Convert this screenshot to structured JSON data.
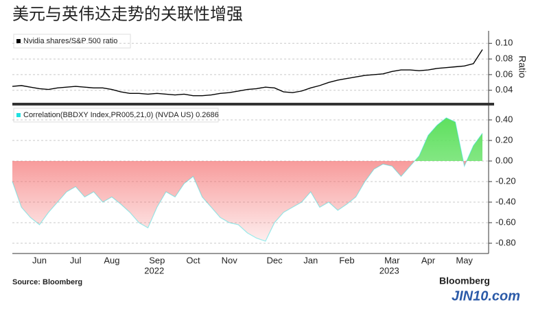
{
  "page_title": "美元与英伟达走势的关联性增强",
  "source": "Source: Bloomberg",
  "brand": "Bloomberg",
  "watermark": "JIN10.com",
  "chart_data": [
    {
      "type": "line",
      "y_label": "Ratio",
      "categories": [
        null,
        null,
        null,
        "Jun",
        null,
        null,
        null,
        "Jul",
        null,
        null,
        null,
        "Aug",
        null,
        null,
        null,
        null,
        "Sep",
        null,
        null,
        null,
        "Oct",
        null,
        null,
        null,
        "Nov",
        null,
        null,
        null,
        null,
        "Dec",
        null,
        null,
        null,
        "Jan",
        null,
        null,
        null,
        "Feb",
        null,
        null,
        null,
        null,
        "Mar",
        null,
        null,
        null,
        "Apr",
        null,
        null,
        null,
        "May",
        null,
        null
      ],
      "series": [
        {
          "name": "Nvidia shares/S&P 500 ratio",
          "color": "#000000",
          "values": [
            0.045,
            0.046,
            0.044,
            0.042,
            0.041,
            0.043,
            0.044,
            0.045,
            0.044,
            0.043,
            0.043,
            0.041,
            0.038,
            0.036,
            0.036,
            0.035,
            0.036,
            0.035,
            0.034,
            0.035,
            0.033,
            0.033,
            0.034,
            0.036,
            0.037,
            0.039,
            0.041,
            0.042,
            0.044,
            0.043,
            0.038,
            0.037,
            0.039,
            0.043,
            0.046,
            0.05,
            0.053,
            0.055,
            0.057,
            0.059,
            0.06,
            0.061,
            0.064,
            0.066,
            0.066,
            0.065,
            0.066,
            0.068,
            0.069,
            0.07,
            0.071,
            0.074,
            0.092
          ]
        }
      ],
      "ylim": [
        0.024,
        0.116
      ],
      "yticks": [
        {
          "value": 0.1,
          "label": "0.10"
        },
        0.08,
        0.06,
        0.04
      ],
      "grid": true
    },
    {
      "type": "area",
      "categories": [
        null,
        null,
        null,
        "Jun",
        null,
        null,
        null,
        "Jul",
        null,
        null,
        null,
        "Aug",
        null,
        null,
        null,
        null,
        "Sep",
        null,
        null,
        null,
        "Oct",
        null,
        null,
        null,
        "Nov",
        null,
        null,
        null,
        null,
        "Dec",
        null,
        null,
        null,
        "Jan",
        null,
        null,
        null,
        "Feb",
        null,
        null,
        null,
        null,
        "Mar",
        null,
        null,
        null,
        "Apr",
        null,
        null,
        null,
        "May",
        null,
        null
      ],
      "years": [
        "2022",
        "2023"
      ],
      "series": [
        {
          "name": "Correlation(BBDXY Index,PR005,21,0) (NVDA US) 0.2686",
          "color": "#20e0e0",
          "positive_color": "#5ee05e",
          "negative_color": "#f46f6f",
          "values": [
            -0.2,
            -0.45,
            -0.55,
            -0.62,
            -0.5,
            -0.4,
            -0.3,
            -0.25,
            -0.35,
            -0.3,
            -0.4,
            -0.35,
            -0.42,
            -0.5,
            -0.6,
            -0.65,
            -0.45,
            -0.3,
            -0.35,
            -0.22,
            -0.15,
            -0.35,
            -0.45,
            -0.55,
            -0.6,
            -0.62,
            -0.7,
            -0.75,
            -0.78,
            -0.6,
            -0.5,
            -0.45,
            -0.4,
            -0.3,
            -0.45,
            -0.4,
            -0.48,
            -0.42,
            -0.35,
            -0.2,
            -0.08,
            -0.03,
            -0.05,
            -0.15,
            -0.05,
            0.05,
            0.25,
            0.35,
            0.42,
            0.38,
            -0.05,
            0.15,
            0.27
          ]
        }
      ],
      "ylim": [
        -0.9,
        0.52
      ],
      "yticks": [
        {
          "value": 0.4,
          "label": "0.40"
        },
        {
          "value": 0.2,
          "label": "0.20"
        },
        {
          "value": 0,
          "label": "0.00"
        },
        {
          "value": -0.2,
          "label": "-0.20"
        },
        {
          "value": -0.4,
          "label": "-0.40"
        },
        {
          "value": -0.6,
          "label": "-0.60"
        },
        {
          "value": -0.8,
          "label": "-0.80"
        }
      ],
      "grid": true
    }
  ]
}
